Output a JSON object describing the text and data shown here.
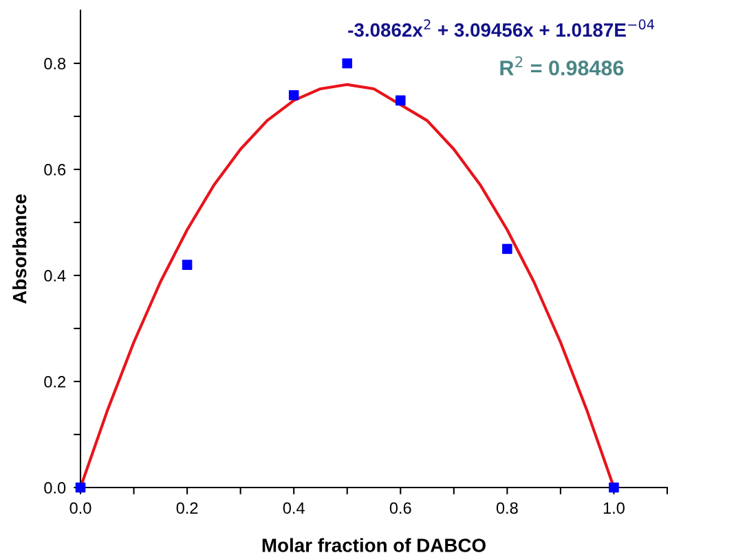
{
  "chart_data": {
    "type": "scatter",
    "xlabel": "Molar fraction of DABCO",
    "ylabel": "Absorbance",
    "xlim": [
      0,
      1.1
    ],
    "ylim": [
      0,
      0.9
    ],
    "xticks": [
      {
        "value": 0,
        "label": "0.0"
      },
      {
        "value": 0.1,
        "label": null
      },
      {
        "value": 0.2,
        "label": "0.2"
      },
      {
        "value": 0.3,
        "label": null
      },
      {
        "value": 0.4,
        "label": "0.4"
      },
      {
        "value": 0.5,
        "label": null
      },
      {
        "value": 0.6,
        "label": "0.6"
      },
      {
        "value": 0.7,
        "label": null
      },
      {
        "value": 0.8,
        "label": "0.8"
      },
      {
        "value": 0.9,
        "label": null
      },
      {
        "value": 1.0,
        "label": "1.0"
      },
      {
        "value": 1.1,
        "label": null
      }
    ],
    "yticks": [
      {
        "value": 0,
        "label": "0.0"
      },
      {
        "value": 0.1,
        "label": null
      },
      {
        "value": 0.2,
        "label": "0.2"
      },
      {
        "value": 0.3,
        "label": null
      },
      {
        "value": 0.4,
        "label": "0.4"
      },
      {
        "value": 0.5,
        "label": null
      },
      {
        "value": 0.6,
        "label": "0.6"
      },
      {
        "value": 0.7,
        "label": null
      },
      {
        "value": 0.8,
        "label": "0.8"
      }
    ],
    "grid": false,
    "legend": false,
    "series": [
      {
        "color": "#0000ff",
        "marker": "square",
        "x": [
          0,
          0.2,
          0.4,
          0.5,
          0.6,
          0.8,
          1.0
        ],
        "values": [
          0.0,
          0.42,
          0.74,
          0.8,
          0.73,
          0.45,
          0.0
        ]
      },
      {
        "type": "line",
        "color": "#e8141b",
        "marker": "none",
        "line_style": "solid",
        "x": [
          0,
          0.05,
          0.1,
          0.15,
          0.2,
          0.25,
          0.3,
          0.35,
          0.4,
          0.45,
          0.5,
          0.55,
          0.65,
          0.7,
          0.75,
          0.8,
          0.85,
          0.9,
          0.95,
          1.0
        ],
        "values": [
          0.0,
          0.144,
          0.274,
          0.388,
          0.486,
          0.57,
          0.638,
          0.692,
          0.73,
          0.752,
          0.76,
          0.752,
          0.692,
          0.638,
          0.57,
          0.486,
          0.388,
          0.274,
          0.144,
          0.0
        ]
      }
    ],
    "annotations": [
      "-3.0862x$^{2}$ + 3.09456x + 1.0187E$^{−04}$",
      "R$^{2}$ = 0.98486"
    ]
  }
}
